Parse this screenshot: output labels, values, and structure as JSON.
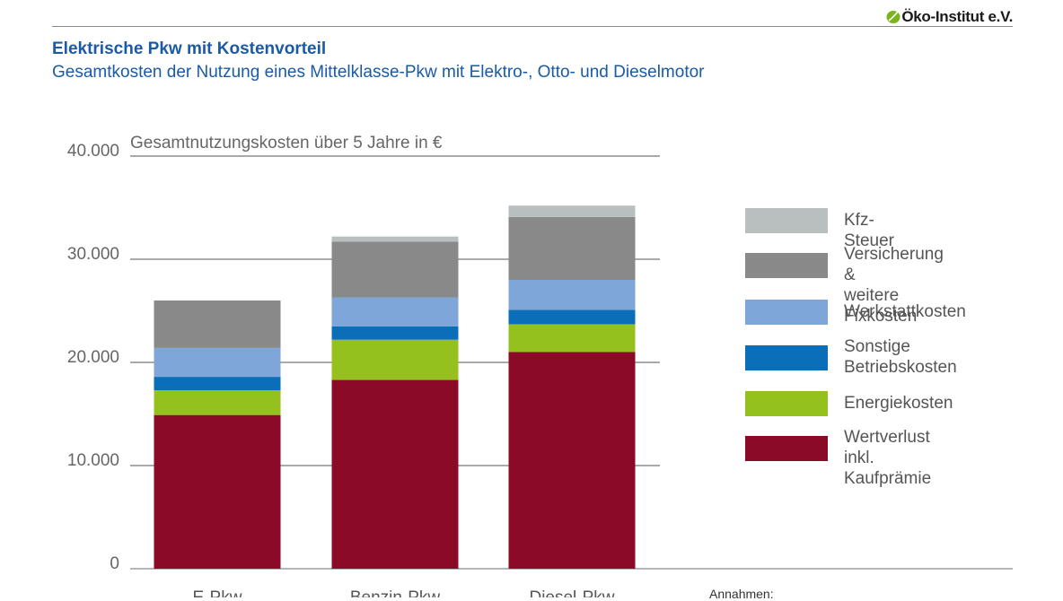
{
  "header": {
    "logo_text": "Öko-Institut e.V.",
    "title": "Elektrische Pkw mit Kostenvorteil",
    "subtitle": "Gesamtkosten der Nutzung eines Mittelklasse-Pkw mit Elektro-, Otto- und Dieselmotor",
    "logo_color": "#7ab51d"
  },
  "footnote": "Annahmen:",
  "chart_data": {
    "type": "bar",
    "stacked": true,
    "title": "Gesamtnutzungskosten über 5 Jahre in €",
    "categories": [
      "E-Pkw",
      "Benzin-Pkw",
      "Diesel-Pkw"
    ],
    "ylim": [
      0,
      40000
    ],
    "yticks": [
      0,
      10000,
      20000,
      30000,
      40000
    ],
    "ytick_labels": [
      "0",
      "10.000",
      "20.000",
      "30.000",
      "40.000"
    ],
    "grid": true,
    "legend_position": "right",
    "series": [
      {
        "name": "Wertverlust\ninkl. Kaufprämie",
        "color": "#8b0a27",
        "values": [
          14900,
          18300,
          21000
        ]
      },
      {
        "name": "Energiekosten",
        "color": "#95c11f",
        "values": [
          2400,
          3900,
          2700
        ]
      },
      {
        "name": "Sonstige\nBetriebskosten",
        "color": "#0b6eb8",
        "values": [
          1300,
          1300,
          1400
        ]
      },
      {
        "name": "Werkstattkosten",
        "color": "#7ea6d8",
        "values": [
          2800,
          2800,
          2900
        ]
      },
      {
        "name": "Versicherung &\nweitere Fixkosten",
        "color": "#898989",
        "values": [
          4600,
          5400,
          6100
        ]
      },
      {
        "name": "Kfz-Steuer",
        "color": "#b9bfbf",
        "values": [
          0,
          500,
          1100
        ]
      }
    ]
  }
}
